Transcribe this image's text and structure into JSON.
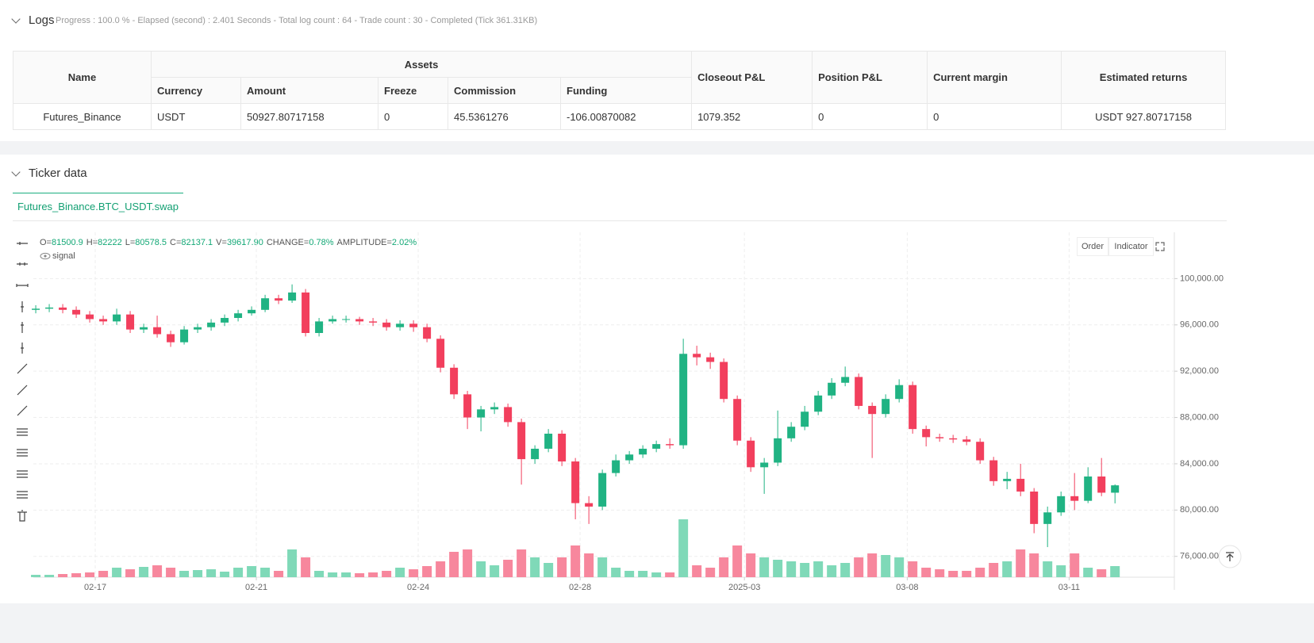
{
  "logs": {
    "title": "Logs",
    "status": "Progress : 100.0 % - Elapsed (second) : 2.401 Seconds - Total log count : 64 - Trade count : 30 - Completed (Tick 361.31KB)"
  },
  "assets_table": {
    "group_header": "Assets",
    "columns": [
      "Name",
      "Currency",
      "Amount",
      "Freeze",
      "Commission",
      "Funding",
      "Closeout P&L",
      "Position P&L",
      "Current margin",
      "Estimated returns"
    ],
    "rows": [
      [
        "Futures_Binance",
        "USDT",
        "50927.80717158",
        "0",
        "45.5361276",
        "-106.00870082",
        "1079.352",
        "0",
        "0",
        "USDT 927.80717158"
      ]
    ]
  },
  "ticker": {
    "title": "Ticker data",
    "tab": "Futures_Binance.BTC_USDT.swap",
    "buttons": [
      "Order",
      "Indicator"
    ]
  },
  "chart_data": {
    "type": "candlestick",
    "legend": [
      {
        "label": "O=",
        "value": "81500.9"
      },
      {
        "label": "H=",
        "value": "82222"
      },
      {
        "label": "L=",
        "value": "80578.5"
      },
      {
        "label": "C=",
        "value": "82137.1"
      },
      {
        "label": "V=",
        "value": "39617.90"
      },
      {
        "label": "CHANGE=",
        "value": "0.78%"
      },
      {
        "label": "AMPLITUDE=",
        "value": "2.02%"
      }
    ],
    "indicator": "signal",
    "up_color": "#20b383",
    "down_color": "#f23f5d",
    "up_volume_color": "#7fd9b8",
    "down_volume_color": "#f7879d",
    "open": [
      97300,
      97400,
      97500,
      97300,
      96900,
      96500,
      96300,
      96900,
      95600,
      95800,
      95200,
      94500,
      95600,
      95800,
      96200,
      96600,
      97000,
      97300,
      98300,
      98100,
      98800,
      95300,
      96300,
      96500,
      96500,
      96300,
      96200,
      95800,
      96100,
      95800,
      94800,
      92300,
      90000,
      88000,
      88700,
      88900,
      87600,
      84400,
      85300,
      86600,
      84200,
      80600,
      80300,
      83200,
      84300,
      84800,
      85300,
      85700,
      85600,
      93500,
      93200,
      92800,
      89600,
      86000,
      83700,
      84100,
      86200,
      87200,
      88500,
      89900,
      91000,
      91500,
      89000,
      88300,
      89600,
      90800,
      87000,
      86300,
      86200,
      86100,
      85900,
      84300,
      82500,
      82700,
      81600,
      78800,
      79800,
      81200,
      80800,
      82900,
      81500.9
    ],
    "high": [
      97700,
      97800,
      97800,
      97600,
      97200,
      96800,
      97400,
      97200,
      96100,
      96800,
      95500,
      95900,
      96100,
      96500,
      96900,
      97300,
      97600,
      98600,
      98600,
      99500,
      99100,
      96600,
      96800,
      96800,
      96700,
      96600,
      96500,
      96400,
      96400,
      96100,
      95100,
      92600,
      90300,
      89000,
      89300,
      89200,
      87900,
      85600,
      87000,
      86900,
      84500,
      81200,
      83500,
      84800,
      85100,
      85600,
      86000,
      86200,
      94800,
      94200,
      93600,
      93100,
      89900,
      86300,
      84500,
      88600,
      87600,
      89000,
      90300,
      91400,
      92400,
      91800,
      89300,
      90000,
      91300,
      91100,
      87300,
      86600,
      86500,
      86400,
      86200,
      84600,
      83300,
      84000,
      81900,
      80300,
      81600,
      83200,
      83700,
      84500,
      82222
    ],
    "low": [
      97000,
      97100,
      97000,
      96600,
      96200,
      96000,
      96000,
      95300,
      95300,
      94900,
      94100,
      94300,
      95300,
      95500,
      95900,
      96300,
      96800,
      97100,
      97800,
      97900,
      95000,
      95000,
      96100,
      96200,
      96000,
      95900,
      95500,
      95500,
      95400,
      94500,
      91900,
      89600,
      87000,
      86800,
      88300,
      87200,
      82200,
      84000,
      85000,
      83800,
      79200,
      78800,
      80000,
      82900,
      84000,
      84500,
      85000,
      85300,
      85300,
      92500,
      92200,
      89300,
      85600,
      83300,
      81400,
      83800,
      85900,
      86900,
      88200,
      89600,
      90700,
      88700,
      84500,
      88000,
      89300,
      86600,
      85500,
      85900,
      85800,
      85600,
      84000,
      82100,
      81800,
      81200,
      78000,
      76800,
      79500,
      80000,
      80600,
      81200,
      80578.5
    ],
    "close": [
      97400,
      97500,
      97300,
      96900,
      96500,
      96300,
      96900,
      95600,
      95800,
      95200,
      94500,
      95600,
      95800,
      96200,
      96600,
      97000,
      97300,
      98300,
      98100,
      98800,
      95300,
      96300,
      96500,
      96500,
      96300,
      96200,
      95800,
      96100,
      95800,
      94800,
      92300,
      90000,
      88000,
      88700,
      88900,
      87600,
      84400,
      85300,
      86600,
      84200,
      80600,
      80300,
      83200,
      84300,
      84800,
      85300,
      85700,
      85600,
      93500,
      93200,
      92800,
      89600,
      86000,
      83700,
      84100,
      86200,
      87200,
      88500,
      89900,
      91000,
      91500,
      89000,
      88300,
      89600,
      90800,
      87000,
      86300,
      86200,
      86100,
      85900,
      84300,
      82500,
      82700,
      81600,
      78800,
      79800,
      81200,
      80800,
      82900,
      81500.9,
      82137.1
    ],
    "volume": [
      8490,
      8490,
      11320,
      14150,
      16980,
      22640,
      33960,
      28300,
      36790,
      42450,
      33960,
      22640,
      25470,
      28300,
      19810,
      33960,
      39620,
      33960,
      22640,
      99050,
      70750,
      22640,
      16980,
      16980,
      14150,
      16980,
      22640,
      33960,
      28300,
      39620,
      56600,
      90560,
      99050,
      56600,
      42450,
      62260,
      99050,
      70750,
      50940,
      70750,
      113200,
      84900,
      70750,
      33960,
      22640,
      22640,
      16980,
      16980,
      206590,
      42450,
      33960,
      70750,
      113200,
      84900,
      70750,
      62260,
      56600,
      50940,
      56600,
      42450,
      50940,
      70750,
      84900,
      79240,
      70750,
      56600,
      33960,
      28300,
      22640,
      22640,
      33960,
      50940,
      56600,
      99050,
      84900,
      56600,
      42450,
      84900,
      33960,
      28300,
      39617.9
    ],
    "xlim": [
      -0.18,
      84.4
    ],
    "xticks": [
      {
        "value": 4.41,
        "label": "02-17"
      },
      {
        "value": 16.35,
        "label": "02-21"
      },
      {
        "value": 28.35,
        "label": "02-24"
      },
      {
        "value": 40.35,
        "label": "02-28"
      },
      {
        "value": 52.53,
        "label": "2025-03"
      },
      {
        "value": 64.6,
        "label": "03-08"
      },
      {
        "value": 76.6,
        "label": "03-11"
      }
    ],
    "ylim": [
      74200,
      104000
    ],
    "yticks": [
      {
        "value": 76000,
        "label": "76,000.00"
      },
      {
        "value": 80000,
        "label": "80,000.00"
      },
      {
        "value": 84000,
        "label": "84,000.00"
      },
      {
        "value": 88000,
        "label": "88,000.00"
      },
      {
        "value": 92000,
        "label": "92,000.00"
      },
      {
        "value": 96000,
        "label": "96,000.00"
      },
      {
        "value": 100000,
        "label": "100,000.00"
      }
    ],
    "grid": true
  }
}
